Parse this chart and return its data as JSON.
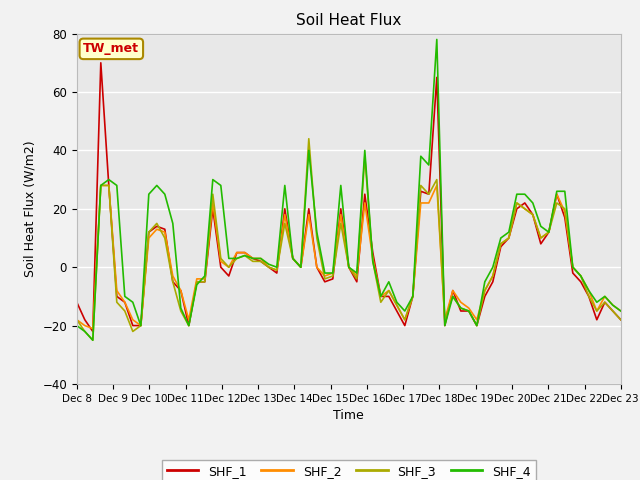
{
  "title": "Soil Heat Flux",
  "xlabel": "Time",
  "ylabel": "Soil Heat Flux (W/m2)",
  "ylim": [
    -40,
    80
  ],
  "fig_facecolor": "#f2f2f2",
  "plot_bg": "#e8e8e8",
  "annotation_text": "TW_met",
  "annotation_bg": "#ffffcc",
  "annotation_fg": "#cc0000",
  "annotation_edge": "#aa8800",
  "series_colors": [
    "#cc0000",
    "#ff8c00",
    "#aaaa00",
    "#22bb00"
  ],
  "series_labels": [
    "SHF_1",
    "SHF_2",
    "SHF_3",
    "SHF_4"
  ],
  "x_tick_labels": [
    "Dec 8",
    "Dec 9",
    "Dec 10",
    "Dec 11",
    "Dec 12",
    "Dec 13",
    "Dec 14",
    "Dec 15",
    "Dec 16",
    "Dec 17",
    "Dec 18",
    "Dec 19",
    "Dec 20",
    "Dec 21",
    "Dec 22",
    "Dec 23"
  ],
  "n_days": 16,
  "SHF_1": [
    -12,
    -18,
    -22,
    70,
    28,
    -10,
    -12,
    -20,
    -20,
    12,
    14,
    13,
    -5,
    -8,
    -20,
    -5,
    -5,
    20,
    0,
    -3,
    5,
    5,
    3,
    2,
    0,
    -2,
    20,
    3,
    0,
    20,
    0,
    -5,
    -4,
    20,
    0,
    -5,
    25,
    5,
    -10,
    -10,
    -15,
    -20,
    -10,
    26,
    25,
    65,
    -20,
    -8,
    -15,
    -15,
    -20,
    -10,
    -5,
    7,
    10,
    20,
    22,
    18,
    8,
    12,
    25,
    17,
    -2,
    -5,
    -10,
    -18,
    -12,
    -15,
    -18
  ],
  "SHF_2": [
    -18,
    -20,
    -21,
    28,
    28,
    -8,
    -12,
    -18,
    -20,
    10,
    13,
    12,
    -3,
    -8,
    -18,
    -4,
    -4,
    22,
    2,
    0,
    5,
    5,
    3,
    3,
    0,
    -1,
    18,
    3,
    0,
    18,
    0,
    -3,
    -2,
    18,
    0,
    -3,
    22,
    3,
    -10,
    -8,
    -13,
    -18,
    -10,
    22,
    22,
    28,
    -18,
    -8,
    -12,
    -14,
    -18,
    -8,
    -3,
    8,
    10,
    22,
    20,
    18,
    10,
    12,
    25,
    19,
    0,
    -3,
    -8,
    -15,
    -10,
    -13,
    -15
  ],
  "SHF_3": [
    -18,
    -22,
    -25,
    28,
    28,
    -12,
    -15,
    -22,
    -20,
    12,
    15,
    10,
    -5,
    -15,
    -20,
    -5,
    -5,
    25,
    3,
    0,
    3,
    4,
    2,
    2,
    0,
    -1,
    15,
    3,
    0,
    44,
    10,
    -4,
    -3,
    15,
    0,
    -4,
    38,
    2,
    -12,
    -8,
    -13,
    -18,
    -10,
    28,
    25,
    30,
    -18,
    -10,
    -14,
    -15,
    -20,
    -8,
    -3,
    8,
    10,
    22,
    20,
    18,
    10,
    12,
    22,
    20,
    0,
    -3,
    -10,
    -15,
    -12,
    -15,
    -18
  ],
  "SHF_4": [
    -20,
    -22,
    -25,
    28,
    30,
    28,
    -10,
    -12,
    -20,
    25,
    28,
    25,
    15,
    -14,
    -20,
    -6,
    -3,
    30,
    28,
    3,
    3,
    4,
    3,
    3,
    1,
    0,
    28,
    3,
    0,
    40,
    12,
    -2,
    -2,
    28,
    0,
    -2,
    40,
    2,
    -10,
    -5,
    -12,
    -15,
    -10,
    38,
    35,
    78,
    -20,
    -10,
    -14,
    -15,
    -20,
    -5,
    0,
    10,
    12,
    25,
    25,
    22,
    14,
    12,
    26,
    26,
    0,
    -3,
    -8,
    -12,
    -10,
    -13,
    -15
  ]
}
